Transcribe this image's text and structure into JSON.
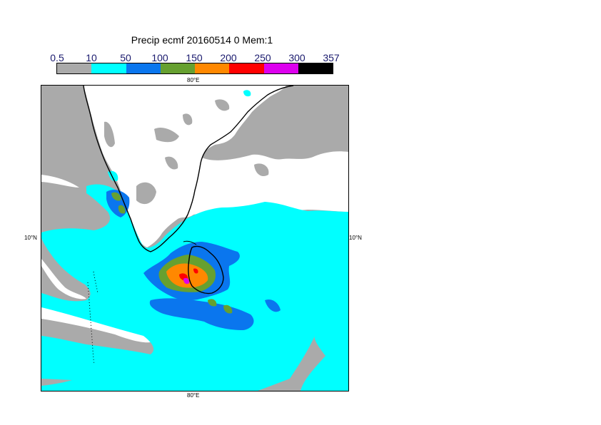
{
  "title": "Precip ecmf 20160514 0 Mem:1",
  "legend": {
    "levels": [
      "0.5",
      "10",
      "50",
      "100",
      "150",
      "200",
      "250",
      "300",
      "357"
    ],
    "colors": [
      "#aaaaaa",
      "#00ffff",
      "#0a76ee",
      "#66a030",
      "#ff8800",
      "#ff0000",
      "#dd00ee",
      "#000000"
    ]
  },
  "axes": {
    "lon_top": "80°E",
    "lon_bottom": "80°E",
    "lat_left": "10°N",
    "lat_right": "10°N"
  },
  "colors": {
    "land": "#ffffff",
    "sea_bg": "#aaaaaa",
    "c10": "#00ffff",
    "c50": "#0a76ee",
    "c100": "#66a030",
    "c150": "#ff8800",
    "c200": "#ff0000",
    "c250": "#dd00ee",
    "coast": "#000000"
  }
}
